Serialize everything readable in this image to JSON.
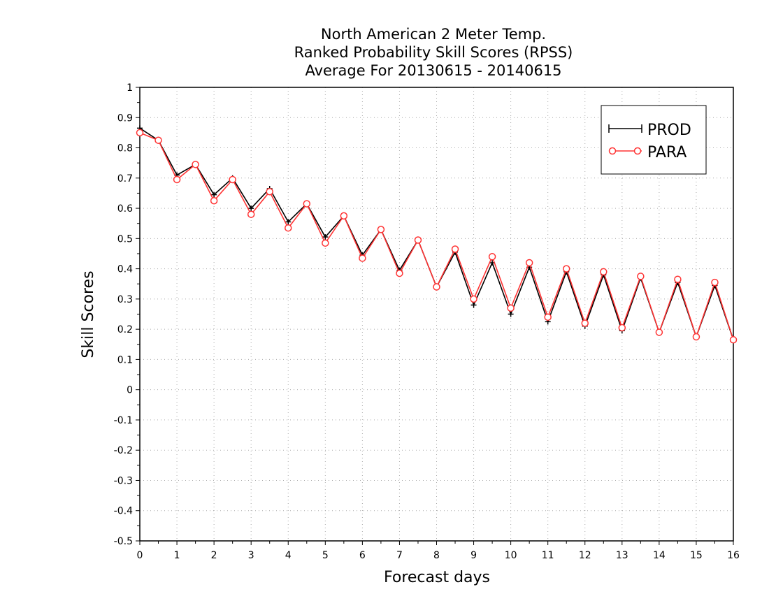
{
  "chart_data": {
    "type": "line",
    "title": [
      "North American 2 Meter Temp.",
      "Ranked Probability Skill Scores (RPSS)",
      "Average For 20130615 - 20140615"
    ],
    "xlabel": "Forecast days",
    "ylabel": "Skill Scores",
    "xlim": [
      0,
      16
    ],
    "ylim": [
      -0.5,
      1
    ],
    "xticks": [
      "0",
      "1",
      "2",
      "3",
      "4",
      "5",
      "6",
      "7",
      "8",
      "9",
      "10",
      "11",
      "12",
      "13",
      "14",
      "15",
      "16"
    ],
    "yticks": [
      "1",
      "0.9",
      "0.8",
      "0.7",
      "0.6",
      "0.5",
      "0.4",
      "0.3",
      "0.2",
      "0.1",
      "0",
      "-0.1",
      "-0.2",
      "-0.3",
      "-0.4",
      "-0.5"
    ],
    "grid": true,
    "legend_position": "top-right",
    "x": [
      0,
      0.5,
      1,
      1.5,
      2,
      2.5,
      3,
      3.5,
      4,
      4.5,
      5,
      5.5,
      6,
      6.5,
      7,
      7.5,
      8,
      8.5,
      9,
      9.5,
      10,
      10.5,
      11,
      11.5,
      12,
      12.5,
      13,
      13.5,
      14,
      14.5,
      15,
      15.5,
      16
    ],
    "series": [
      {
        "name": "PROD",
        "color": "#000000",
        "marker": "plus",
        "values": [
          0.865,
          0.825,
          0.71,
          0.745,
          0.645,
          0.7,
          0.6,
          0.665,
          0.555,
          0.615,
          0.505,
          0.575,
          0.445,
          0.53,
          0.395,
          0.495,
          0.34,
          0.455,
          0.28,
          0.42,
          0.25,
          0.405,
          0.225,
          0.39,
          0.21,
          0.38,
          0.195,
          0.37,
          0.19,
          0.355,
          0.175,
          0.345,
          0.165
        ]
      },
      {
        "name": "PARA",
        "color": "#ff3333",
        "marker": "circle",
        "values": [
          0.85,
          0.825,
          0.695,
          0.745,
          0.625,
          0.695,
          0.58,
          0.655,
          0.535,
          0.615,
          0.485,
          0.575,
          0.435,
          0.53,
          0.385,
          0.495,
          0.34,
          0.465,
          0.3,
          0.44,
          0.27,
          0.42,
          0.24,
          0.4,
          0.22,
          0.39,
          0.205,
          0.375,
          0.19,
          0.365,
          0.175,
          0.355,
          0.165
        ]
      }
    ]
  }
}
